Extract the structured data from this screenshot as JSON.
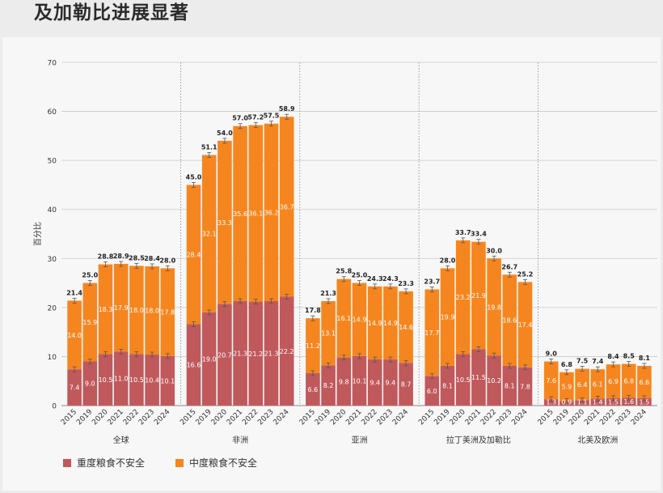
{
  "title": "及加勒比进展显著",
  "chart_data": {
    "type": "bar",
    "stacked": true,
    "title": "及加勒比进展显著",
    "ylabel": "百分比",
    "ylim": [
      0,
      70
    ],
    "yticks": [
      0,
      10,
      20,
      30,
      40,
      50,
      60,
      70
    ],
    "grid": true,
    "legend_position": "bottom-left",
    "colors": {
      "severe": "#c0595c",
      "moderate": "#f5861f"
    },
    "legend": [
      "重度粮食不安全",
      "中度粮食不安全"
    ],
    "groups": [
      {
        "name": "全球",
        "years": [
          "2015",
          "2019",
          "2020",
          "2021",
          "2022",
          "2023",
          "2024"
        ],
        "severe": [
          7.4,
          9.0,
          10.5,
          11.0,
          10.5,
          10.4,
          10.1
        ],
        "moderate": [
          14.0,
          15.9,
          18.3,
          17.9,
          18.0,
          18.0,
          17.8
        ],
        "total": [
          21.4,
          25.0,
          28.8,
          28.9,
          28.5,
          28.4,
          28.0
        ]
      },
      {
        "name": "非洲",
        "years": [
          "2015",
          "2019",
          "2020",
          "2021",
          "2022",
          "2023",
          "2024"
        ],
        "severe": [
          16.6,
          19.0,
          20.7,
          21.3,
          21.2,
          21.3,
          22.2
        ],
        "moderate": [
          28.4,
          32.1,
          33.3,
          35.6,
          36.1,
          36.2,
          36.7
        ],
        "total": [
          45.0,
          51.1,
          54.0,
          57.0,
          57.2,
          57.5,
          58.9
        ]
      },
      {
        "name": "亚洲",
        "years": [
          "2015",
          "2019",
          "2020",
          "2021",
          "2022",
          "2023",
          "2024"
        ],
        "severe": [
          6.6,
          8.2,
          9.8,
          10.1,
          9.4,
          9.4,
          8.7
        ],
        "moderate": [
          11.2,
          13.1,
          16.1,
          14.9,
          14.9,
          14.9,
          14.6
        ],
        "total": [
          17.8,
          21.3,
          25.8,
          25.0,
          24.3,
          24.3,
          23.3
        ]
      },
      {
        "name": "拉丁美洲及加勒比",
        "years": [
          "2015",
          "2019",
          "2020",
          "2021",
          "2022",
          "2023",
          "2024"
        ],
        "severe": [
          6.0,
          8.1,
          10.5,
          11.5,
          10.2,
          8.1,
          7.8
        ],
        "moderate": [
          17.7,
          19.9,
          23.2,
          21.9,
          19.8,
          18.6,
          17.4
        ],
        "total": [
          23.7,
          28.0,
          33.7,
          33.4,
          30.0,
          26.7,
          25.2
        ]
      },
      {
        "name": "北美及欧洲",
        "years": [
          "2015",
          "2019",
          "2020",
          "2021",
          "2022",
          "2023",
          "2024"
        ],
        "severe": [
          1.3,
          0.9,
          1.1,
          1.4,
          1.5,
          1.6,
          1.5
        ],
        "moderate": [
          7.6,
          5.9,
          6.4,
          6.1,
          6.9,
          6.8,
          6.6
        ],
        "total": [
          9.0,
          6.8,
          7.5,
          7.4,
          8.4,
          8.5,
          8.1
        ]
      }
    ]
  }
}
